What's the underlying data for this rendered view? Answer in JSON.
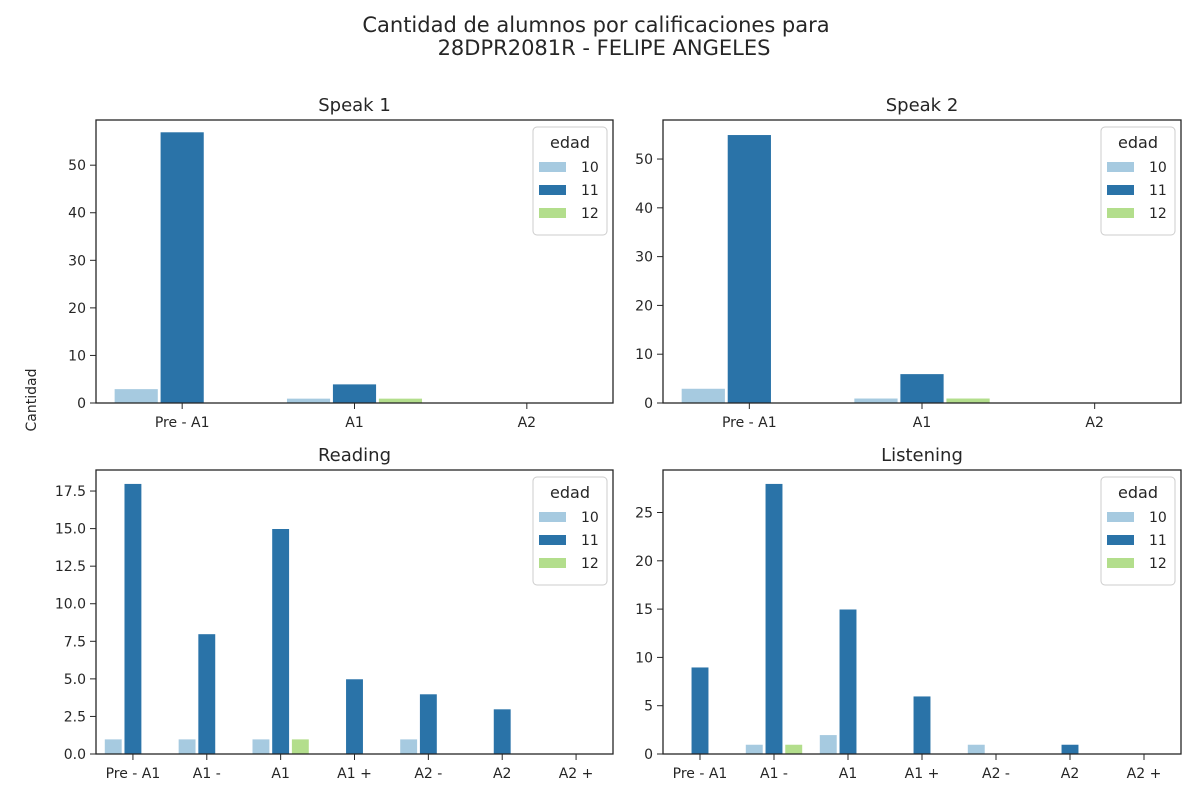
{
  "title_line1": "Cantidad de alumnos por calificaciones para",
  "title_line2": "28DPR2081R - FELIPE ANGELES",
  "ylabel": "Cantidad",
  "colors": {
    "10": "#a6cae0",
    "11": "#2a73a8",
    "12": "#b3de8c"
  },
  "chart_data": [
    {
      "type": "bar",
      "title": "Speak 1",
      "categories": [
        "Pre - A1",
        "A1",
        "A2"
      ],
      "series": [
        {
          "name": "10",
          "values": [
            3,
            1,
            0
          ]
        },
        {
          "name": "11",
          "values": [
            57,
            4,
            0
          ]
        },
        {
          "name": "12",
          "values": [
            0,
            1,
            0
          ]
        }
      ],
      "ylim": [
        0,
        59.5
      ],
      "yticks": [
        0,
        10,
        20,
        30,
        40,
        50
      ],
      "ytick_labels": [
        "0",
        "10",
        "20",
        "30",
        "40",
        "50"
      ],
      "legend": {
        "title": "edad",
        "entries": [
          "10",
          "11",
          "12"
        ],
        "placement": "top-right"
      }
    },
    {
      "type": "bar",
      "title": "Speak 2",
      "categories": [
        "Pre - A1",
        "A1",
        "A2"
      ],
      "series": [
        {
          "name": "10",
          "values": [
            3,
            1,
            0
          ]
        },
        {
          "name": "11",
          "values": [
            55,
            6,
            0
          ]
        },
        {
          "name": "12",
          "values": [
            0,
            1,
            0
          ]
        }
      ],
      "ylim": [
        0,
        58
      ],
      "yticks": [
        0,
        10,
        20,
        30,
        40,
        50
      ],
      "ytick_labels": [
        "0",
        "10",
        "20",
        "30",
        "40",
        "50"
      ],
      "legend": {
        "title": "edad",
        "entries": [
          "10",
          "11",
          "12"
        ],
        "placement": "top-right"
      }
    },
    {
      "type": "bar",
      "title": "Reading",
      "categories": [
        "Pre - A1",
        "A1 -",
        "A1",
        "A1 +",
        "A2 -",
        "A2",
        "A2 +"
      ],
      "series": [
        {
          "name": "10",
          "values": [
            1,
            1,
            1,
            0,
            1,
            0,
            0
          ]
        },
        {
          "name": "11",
          "values": [
            18,
            8,
            15,
            5,
            4,
            3,
            0
          ]
        },
        {
          "name": "12",
          "values": [
            0,
            0,
            1,
            0,
            0,
            0,
            0
          ]
        }
      ],
      "ylim": [
        0,
        18.9
      ],
      "yticks": [
        0,
        2.5,
        5,
        7.5,
        10,
        12.5,
        15,
        17.5
      ],
      "ytick_labels": [
        "0.0",
        "2.5",
        "5.0",
        "7.5",
        "10.0",
        "12.5",
        "15.0",
        "17.5"
      ],
      "legend": {
        "title": "edad",
        "entries": [
          "10",
          "11",
          "12"
        ],
        "placement": "top-right"
      }
    },
    {
      "type": "bar",
      "title": "Listening",
      "categories": [
        "Pre - A1",
        "A1 -",
        "A1",
        "A1 +",
        "A2 -",
        "A2",
        "A2 +"
      ],
      "series": [
        {
          "name": "10",
          "values": [
            0,
            1,
            2,
            0,
            1,
            0,
            0
          ]
        },
        {
          "name": "11",
          "values": [
            9,
            28,
            15,
            6,
            0,
            1,
            0
          ]
        },
        {
          "name": "12",
          "values": [
            0,
            1,
            0,
            0,
            0,
            0,
            0
          ]
        }
      ],
      "ylim": [
        0,
        29.4
      ],
      "yticks": [
        0,
        5,
        10,
        15,
        20,
        25
      ],
      "ytick_labels": [
        "0",
        "5",
        "10",
        "15",
        "20",
        "25"
      ],
      "legend": {
        "title": "edad",
        "entries": [
          "10",
          "11",
          "12"
        ],
        "placement": "top-right"
      }
    }
  ]
}
